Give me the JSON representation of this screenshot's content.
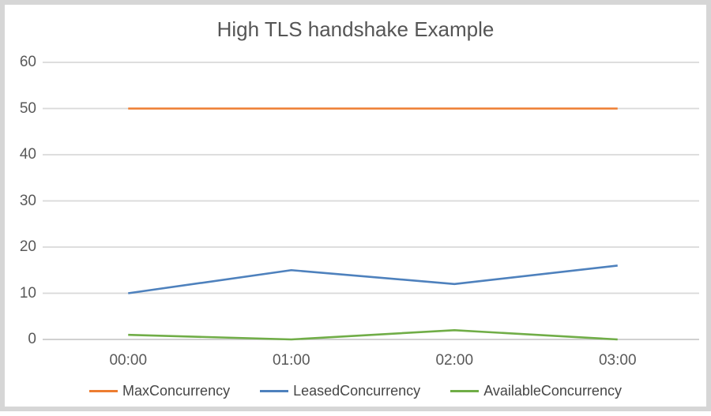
{
  "window": {
    "background": "#ffffff",
    "border_color": "#d6d6d6"
  },
  "chart_data": {
    "type": "line",
    "title": "High TLS handshake Example",
    "categories": [
      "00:00",
      "01:00",
      "02:00",
      "03:00"
    ],
    "series": [
      {
        "name": "MaxConcurrency",
        "values": [
          50,
          50,
          50,
          50
        ],
        "color": "#ED7D31"
      },
      {
        "name": "LeasedConcurrency",
        "values": [
          10,
          15,
          12,
          16
        ],
        "color": "#4E81BD"
      },
      {
        "name": "AvailableConcurrency",
        "values": [
          1,
          0,
          2,
          0
        ],
        "color": "#70AD47"
      }
    ],
    "xlabel": "",
    "ylabel": "",
    "ylim": [
      0,
      60
    ],
    "ytick_step": 10,
    "yticks": [
      "0",
      "10",
      "20",
      "30",
      "40",
      "50",
      "60"
    ],
    "grid": true,
    "gridline_color": "#D9D9D9",
    "zero_line_color": "#C9C9C9",
    "tick_label_color": "#595959",
    "title_color": "#555555",
    "legend_text_color": "#464646",
    "legend_position": "bottom"
  }
}
